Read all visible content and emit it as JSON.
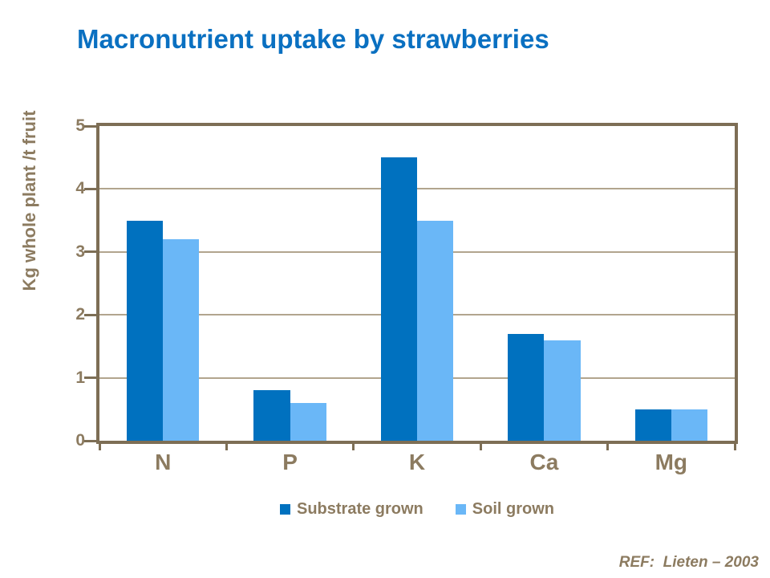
{
  "slide": {
    "title": "Macronutrient uptake by strawberries",
    "reference": "REF:  Lieten – 2003",
    "colors": {
      "title": "#0a70c1",
      "substrate": "#0071bf",
      "soil": "#6ab7f7",
      "text_brown": "#8c7b60",
      "frame_brown": "#7d6e55",
      "gridline": "#b2a58e"
    }
  },
  "chart_data": {
    "type": "bar",
    "title": "Macronutrient uptake by strawberries",
    "categories": [
      "N",
      "P",
      "K",
      "Ca",
      "Mg"
    ],
    "series": [
      {
        "name": "Substrate grown",
        "color": "#0071bf",
        "values": [
          3.5,
          0.8,
          4.5,
          1.7,
          0.5
        ]
      },
      {
        "name": "Soil grown",
        "color": "#6ab7f7",
        "values": [
          3.2,
          0.6,
          3.5,
          1.6,
          0.5
        ]
      }
    ],
    "xlabel": "",
    "ylabel": "Kg whole plant /t fruit",
    "ylim": [
      0,
      5
    ],
    "yticks": [
      0,
      1,
      2,
      3,
      4,
      5
    ],
    "grid": true,
    "legend_position": "bottom",
    "annotations": [
      "REF:  Lieten – 2003"
    ]
  }
}
